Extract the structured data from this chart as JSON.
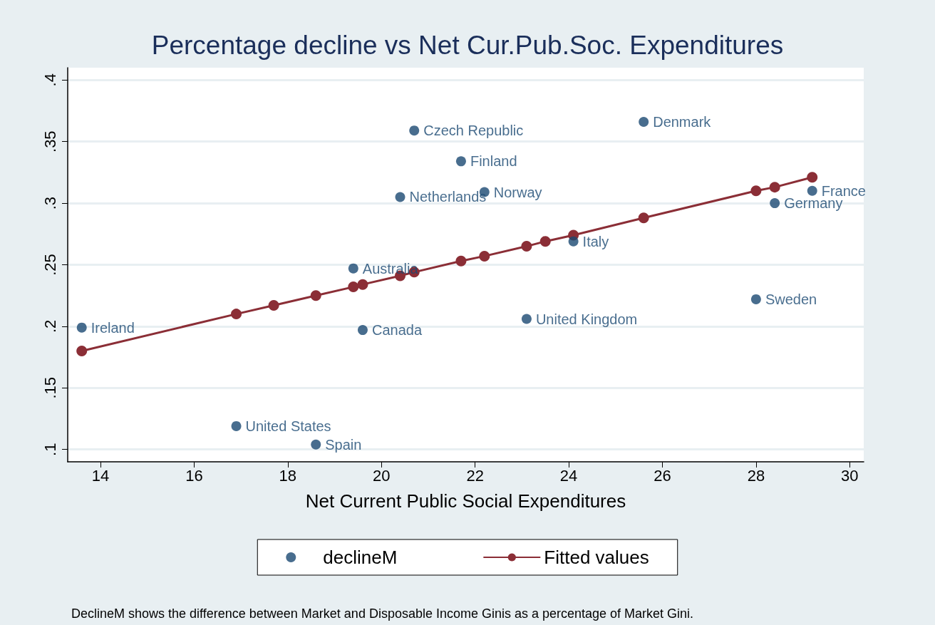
{
  "chart_data": {
    "type": "scatter",
    "title": "Percentage decline vs Net Cur.Pub.Soc. Expenditures",
    "xlabel": "Net Current Public Social Expenditures",
    "series": [
      {
        "name": "declineM",
        "color": "#1a4872",
        "marker": "circle",
        "x": [
          13.6,
          16.9,
          18.6,
          19.4,
          19.6,
          20.4,
          20.7,
          21.7,
          22.2,
          23.1,
          24.1,
          25.6,
          28.0,
          28.4,
          29.2
        ],
        "values": [
          0.199,
          0.119,
          0.104,
          0.247,
          0.197,
          0.305,
          0.359,
          0.334,
          0.309,
          0.206,
          0.269,
          0.366,
          0.222,
          0.3,
          0.31
        ]
      },
      {
        "name": "Fitted values",
        "type": "line",
        "color": "#8b2e36",
        "marker": "circle",
        "line_style": "solid",
        "x": [
          13.6,
          16.9,
          17.7,
          18.6,
          19.4,
          19.6,
          20.4,
          20.7,
          21.7,
          22.2,
          23.1,
          23.5,
          24.1,
          25.6,
          28.0,
          28.4,
          29.2
        ],
        "values": [
          0.18,
          0.21,
          0.217,
          0.225,
          0.232,
          0.234,
          0.241,
          0.244,
          0.253,
          0.257,
          0.265,
          0.269,
          0.274,
          0.288,
          0.31,
          0.313,
          0.321
        ]
      }
    ],
    "xlim": [
      13.3,
      30.3
    ],
    "xticks": [
      14,
      16,
      18,
      20,
      22,
      24,
      26,
      28,
      30
    ],
    "ylim": [
      0.09,
      0.41
    ],
    "yticks": [
      {
        "value": 0.1,
        "label": ".1"
      },
      {
        "value": 0.15,
        "label": ".15"
      },
      {
        "value": 0.2,
        "label": ".2"
      },
      {
        "value": 0.25,
        "label": ".25"
      },
      {
        "value": 0.3,
        "label": ".3"
      },
      {
        "value": 0.35,
        "label": ".35"
      },
      {
        "value": 0.4,
        "label": ".4"
      }
    ],
    "grid": "y",
    "legend": "bottom",
    "annotations": [
      {
        "text": "Ireland",
        "x": 13.6,
        "y": 0.199
      },
      {
        "text": "United States",
        "x": 16.9,
        "y": 0.119
      },
      {
        "text": "Spain",
        "x": 18.6,
        "y": 0.104
      },
      {
        "text": "Australia",
        "x": 19.4,
        "y": 0.247
      },
      {
        "text": "Canada",
        "x": 19.6,
        "y": 0.197
      },
      {
        "text": "Netherlands",
        "x": 20.4,
        "y": 0.305
      },
      {
        "text": "Czech Republic",
        "x": 20.7,
        "y": 0.359
      },
      {
        "text": "Finland",
        "x": 21.7,
        "y": 0.334
      },
      {
        "text": "Norway",
        "x": 22.2,
        "y": 0.309
      },
      {
        "text": "United Kingdom",
        "x": 23.1,
        "y": 0.206
      },
      {
        "text": "Italy",
        "x": 24.1,
        "y": 0.269
      },
      {
        "text": "Denmark",
        "x": 25.6,
        "y": 0.366
      },
      {
        "text": "Sweden",
        "x": 28.0,
        "y": 0.222
      },
      {
        "text": "Germany",
        "x": 28.4,
        "y": 0.3
      },
      {
        "text": "France",
        "x": 29.2,
        "y": 0.31
      },
      "DeclineM shows the difference between Market and Disposable Income Ginis as a percentage of Market Gini."
    ]
  }
}
